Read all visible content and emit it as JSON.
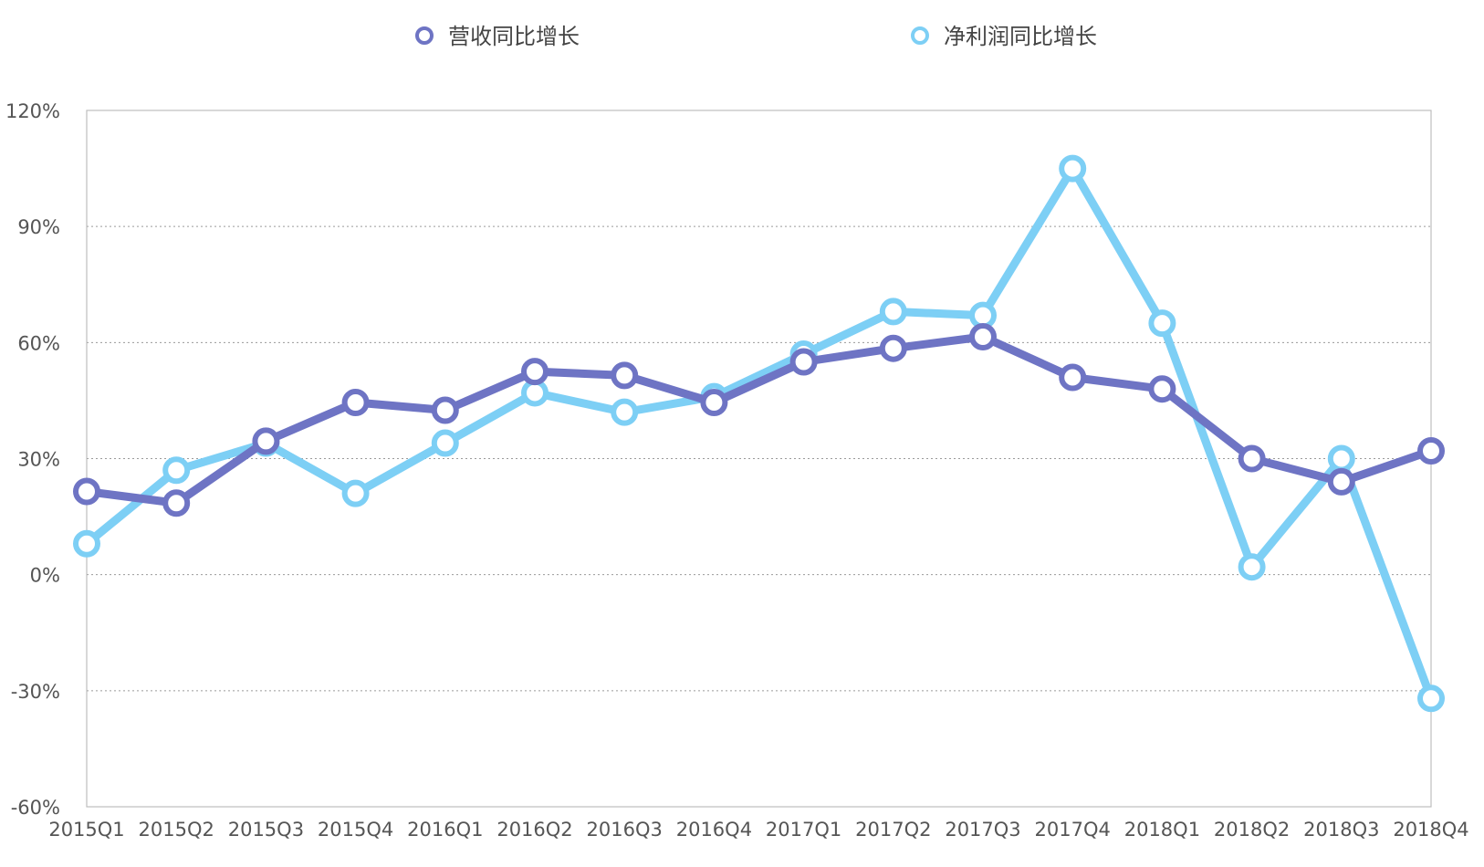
{
  "chart_data": {
    "type": "line",
    "categories": [
      "2015Q1",
      "2015Q2",
      "2015Q3",
      "2015Q4",
      "2016Q1",
      "2016Q2",
      "2016Q3",
      "2016Q4",
      "2017Q1",
      "2017Q2",
      "2017Q3",
      "2017Q4",
      "2018Q1",
      "2018Q2",
      "2018Q3",
      "2018Q4"
    ],
    "series": [
      {
        "name": "营收同比增长",
        "color": "#6E74C4",
        "values": [
          21.5,
          18.5,
          34.5,
          44.5,
          42.5,
          52.5,
          51.5,
          44.5,
          55,
          58.5,
          61.5,
          51,
          48,
          30,
          24,
          32
        ]
      },
      {
        "name": "净利润同比增长",
        "color": "#7DCFF5",
        "values": [
          8,
          27,
          34,
          21,
          34,
          47,
          42,
          46,
          57,
          68,
          67,
          105,
          65,
          2,
          30,
          -32
        ]
      }
    ],
    "y_ticks": [
      -60,
      -30,
      0,
      30,
      60,
      90,
      120
    ],
    "y_tick_labels": [
      "-60%",
      "-30%",
      "0%",
      "30%",
      "60%",
      "90%",
      "120%"
    ],
    "ylim": [
      -60,
      120
    ],
    "title": "",
    "xlabel": "",
    "ylabel": "",
    "grid": true,
    "legend": "top-center"
  }
}
